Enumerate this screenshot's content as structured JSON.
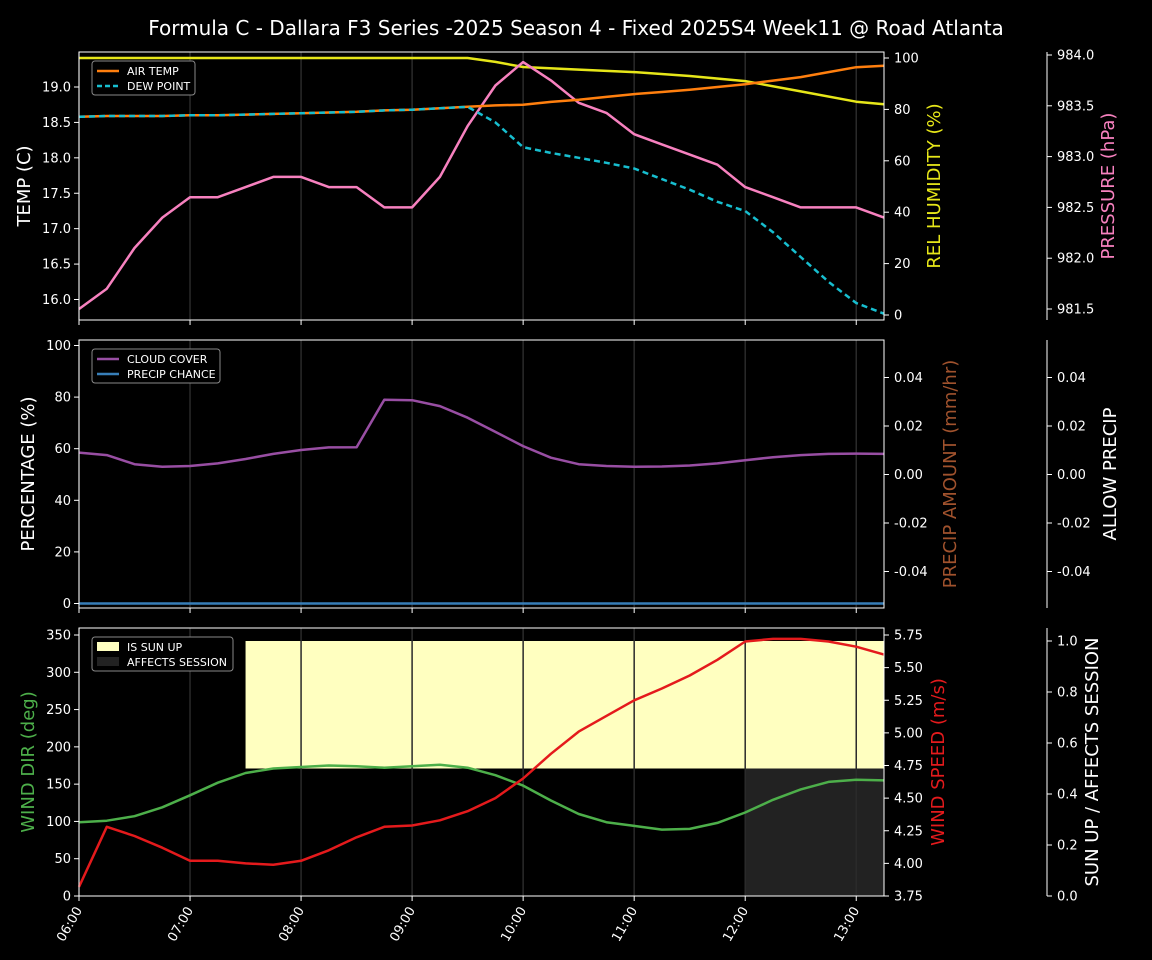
{
  "chart_data": {
    "title": "Formula C - Dallara F3 Series -2025 Season 4 - Fixed 2025S4 Week11 @ Road Atlanta",
    "x_ticks": [
      "06:00",
      "07:00",
      "08:00",
      "09:00",
      "10:00",
      "11:00",
      "12:00",
      "13:00"
    ],
    "x_range_hours": [
      6.0,
      13.25
    ],
    "panels": [
      {
        "type": "line",
        "ylabel_left": "TEMP (C)",
        "ylabel_right": "REL HUMIDITY (%)",
        "ylabel_far": "PRESSURE (hPa)",
        "left_ticks": [
          "16.0",
          "16.5",
          "17.0",
          "17.5",
          "18.0",
          "18.5",
          "19.0"
        ],
        "right_ticks": [
          "0",
          "20",
          "40",
          "60",
          "80",
          "100"
        ],
        "far_ticks": [
          "981.5",
          "982.0",
          "982.5",
          "983.0",
          "983.5",
          "984.0"
        ],
        "legend": [
          "AIR TEMP",
          "DEW POINT"
        ],
        "colors": {
          "air_temp": "#ff7f0e",
          "dew_point": "#17becf",
          "humidity": "#e6e619",
          "pressure": "#f781bf"
        },
        "series": [
          {
            "name": "AIR TEMP",
            "axis": "left",
            "x": [
              6.0,
              6.25,
              6.5,
              6.75,
              7.0,
              7.25,
              7.5,
              7.75,
              8.0,
              8.25,
              8.5,
              8.75,
              9.0,
              9.25,
              9.5,
              9.75,
              10.0,
              10.25,
              10.5,
              10.75,
              11.0,
              11.25,
              11.5,
              11.75,
              12.0,
              12.25,
              12.5,
              12.75,
              13.0,
              13.25
            ],
            "values": [
              18.58,
              18.59,
              18.59,
              18.59,
              18.6,
              18.6,
              18.61,
              18.62,
              18.63,
              18.64,
              18.65,
              18.67,
              18.68,
              18.7,
              18.72,
              18.74,
              18.75,
              18.79,
              18.82,
              18.86,
              18.9,
              18.93,
              18.96,
              19.0,
              19.04,
              19.09,
              19.14,
              19.21,
              19.28,
              19.3
            ]
          },
          {
            "name": "DEW POINT",
            "axis": "left",
            "x": [
              6.0,
              6.25,
              6.5,
              6.75,
              7.0,
              7.25,
              7.5,
              7.75,
              8.0,
              8.25,
              8.5,
              8.75,
              9.0,
              9.25,
              9.5,
              9.75,
              10.0,
              10.25,
              10.5,
              10.75,
              11.0,
              11.25,
              11.5,
              11.75,
              12.0,
              12.25,
              12.5,
              12.75,
              13.0,
              13.25
            ],
            "values": [
              18.58,
              18.59,
              18.59,
              18.59,
              18.6,
              18.6,
              18.61,
              18.62,
              18.63,
              18.64,
              18.65,
              18.67,
              18.68,
              18.7,
              18.72,
              18.5,
              18.15,
              18.07,
              18.0,
              17.93,
              17.85,
              17.7,
              17.55,
              17.38,
              17.25,
              16.95,
              16.6,
              16.25,
              15.95,
              15.8
            ]
          },
          {
            "name": "REL HUMIDITY",
            "axis": "right",
            "x": [
              6.0,
              6.5,
              7.0,
              7.5,
              8.0,
              8.5,
              9.0,
              9.5,
              9.75,
              10.0,
              10.5,
              11.0,
              11.5,
              12.0,
              12.5,
              13.0,
              13.25
            ],
            "values": [
              100,
              100,
              100,
              100,
              100,
              100,
              100,
              100,
              98.5,
              96.5,
              95.5,
              94.5,
              93,
              91,
              87,
              83,
              82
            ]
          },
          {
            "name": "PRESSURE",
            "axis": "far",
            "x": [
              6.0,
              6.25,
              6.5,
              6.75,
              7.0,
              7.25,
              7.5,
              7.75,
              8.0,
              8.25,
              8.5,
              8.75,
              9.0,
              9.25,
              9.5,
              9.75,
              10.0,
              10.25,
              10.5,
              10.75,
              11.0,
              11.25,
              11.5,
              11.75,
              12.0,
              12.25,
              12.5,
              12.75,
              13.0,
              13.25
            ],
            "values": [
              981.5,
              981.7,
              982.1,
              982.4,
              982.6,
              982.6,
              982.7,
              982.8,
              982.8,
              982.7,
              982.7,
              982.5,
              982.5,
              982.8,
              983.3,
              983.7,
              983.93,
              983.75,
              983.53,
              983.43,
              983.22,
              983.12,
              983.02,
              982.92,
              982.7,
              982.6,
              982.5,
              982.5,
              982.5,
              982.4
            ]
          }
        ]
      },
      {
        "type": "line",
        "ylabel_left": "PERCENTAGE (%)",
        "ylabel_right": "PRECIP AMOUNT (mm/hr)",
        "ylabel_far": "ALLOW PRECIP",
        "left_ticks": [
          "0",
          "20",
          "40",
          "60",
          "80",
          "100"
        ],
        "right_ticks": [
          "-0.04",
          "-0.02",
          "0.00",
          "0.02",
          "0.04"
        ],
        "far_ticks": [
          "-0.04",
          "-0.02",
          "0.00",
          "0.02",
          "0.04"
        ],
        "legend": [
          "CLOUD COVER",
          "PRECIP CHANCE"
        ],
        "colors": {
          "cloud_cover": "#984ea3",
          "precip_chance": "#377eb8",
          "precip_label": "#a0522d"
        },
        "series": [
          {
            "name": "CLOUD COVER",
            "axis": "left",
            "x": [
              6.0,
              6.25,
              6.5,
              6.75,
              7.0,
              7.25,
              7.5,
              7.75,
              8.0,
              8.25,
              8.5,
              8.75,
              9.0,
              9.25,
              9.5,
              9.75,
              10.0,
              10.25,
              10.5,
              10.75,
              11.0,
              11.25,
              11.5,
              11.75,
              12.0,
              12.25,
              12.5,
              12.75,
              13.0,
              13.25
            ],
            "values": [
              58.5,
              57.5,
              54,
              53,
              53.3,
              54.3,
              56,
              58,
              59.5,
              60.5,
              60.6,
              79,
              78.8,
              76.5,
              72,
              66.5,
              61,
              56.5,
              54,
              53.3,
              53,
              53.1,
              53.5,
              54.3,
              55.5,
              56.7,
              57.5,
              58,
              58.1,
              58
            ]
          },
          {
            "name": "PRECIP CHANCE",
            "axis": "left",
            "x": [
              6.0,
              13.25
            ],
            "values": [
              0,
              0
            ]
          }
        ]
      },
      {
        "type": "line",
        "ylabel_left": "WIND DIR (deg)",
        "ylabel_right": "WIND SPEED (m/s)",
        "ylabel_far": "SUN UP / AFFECTS SESSION",
        "left_ticks": [
          "0",
          "50",
          "100",
          "150",
          "200",
          "250",
          "300",
          "350"
        ],
        "right_ticks": [
          "3.75",
          "4.00",
          "4.25",
          "4.50",
          "4.75",
          "5.00",
          "5.25",
          "5.50",
          "5.75"
        ],
        "far_ticks": [
          "0.0",
          "0.2",
          "0.4",
          "0.6",
          "0.8",
          "1.0"
        ],
        "legend": [
          "IS SUN UP",
          "AFFECTS SESSION"
        ],
        "colors": {
          "sun_up": "#ffffc0",
          "affects": "#222222",
          "wind_dir": "#4daf4a",
          "wind_speed": "#e41a1c"
        },
        "sun_up": {
          "x_start": 7.5,
          "x_end": 13.25,
          "value": 1
        },
        "affects_session": {
          "x_start": 12.0,
          "x_end": 13.25,
          "value": 1
        },
        "series": [
          {
            "name": "WIND DIR",
            "axis": "left",
            "x": [
              6.0,
              6.25,
              6.5,
              6.75,
              7.0,
              7.25,
              7.5,
              7.75,
              8.0,
              8.25,
              8.5,
              8.75,
              9.0,
              9.25,
              9.5,
              9.75,
              10.0,
              10.25,
              10.5,
              10.75,
              11.0,
              11.25,
              11.5,
              11.75,
              12.0,
              12.25,
              12.5,
              12.75,
              13.0,
              13.25
            ],
            "values": [
              99,
              101,
              107,
              119,
              135,
              152,
              165,
              171,
              173,
              175,
              174,
              172,
              174,
              176,
              172,
              162,
              148,
              128,
              110,
              99,
              94,
              89,
              90,
              98,
              112,
              129,
              143,
              153,
              156,
              155
            ]
          },
          {
            "name": "WIND SPEED",
            "axis": "right",
            "x": [
              6.0,
              6.25,
              6.5,
              6.75,
              7.0,
              7.25,
              7.5,
              7.75,
              8.0,
              8.25,
              8.5,
              8.75,
              9.0,
              9.25,
              9.5,
              9.75,
              10.0,
              10.25,
              10.5,
              10.75,
              11.0,
              11.25,
              11.5,
              11.75,
              12.0,
              12.25,
              12.5,
              12.75,
              13.0,
              13.25
            ],
            "values": [
              3.82,
              4.28,
              4.21,
              4.12,
              4.02,
              4.02,
              4.0,
              3.99,
              4.02,
              4.1,
              4.2,
              4.28,
              4.29,
              4.33,
              4.4,
              4.5,
              4.65,
              4.84,
              5.01,
              5.13,
              5.25,
              5.34,
              5.44,
              5.56,
              5.7,
              5.72,
              5.72,
              5.7,
              5.66,
              5.6
            ]
          }
        ]
      }
    ]
  }
}
